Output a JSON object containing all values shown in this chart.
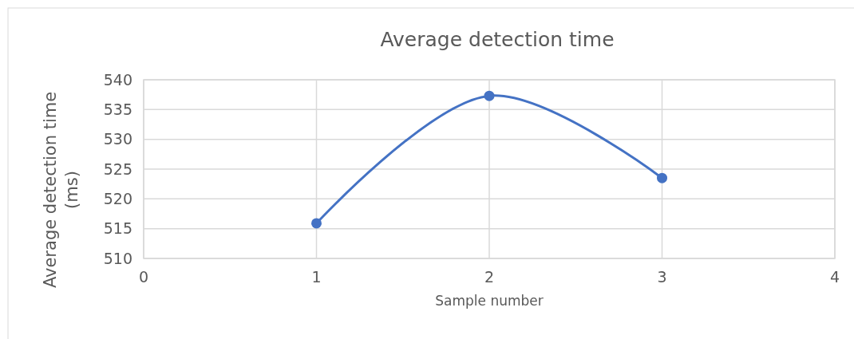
{
  "chart_data": {
    "type": "line",
    "title": "Average detection time",
    "xlabel": "Sample number",
    "ylabel": "Average detection time (ms)",
    "x": [
      1,
      2,
      3
    ],
    "series": [
      {
        "color": "#4472c4",
        "values": [
          515.9,
          537.3,
          523.5
        ]
      }
    ],
    "xlim": [
      0,
      4
    ],
    "xticks": [
      0,
      1,
      2,
      3,
      4
    ],
    "ylim": [
      510,
      540
    ],
    "yticks": [
      510,
      515,
      520,
      525,
      530,
      535,
      540
    ],
    "grid": true,
    "marker": "circle",
    "line_style": "solid"
  }
}
